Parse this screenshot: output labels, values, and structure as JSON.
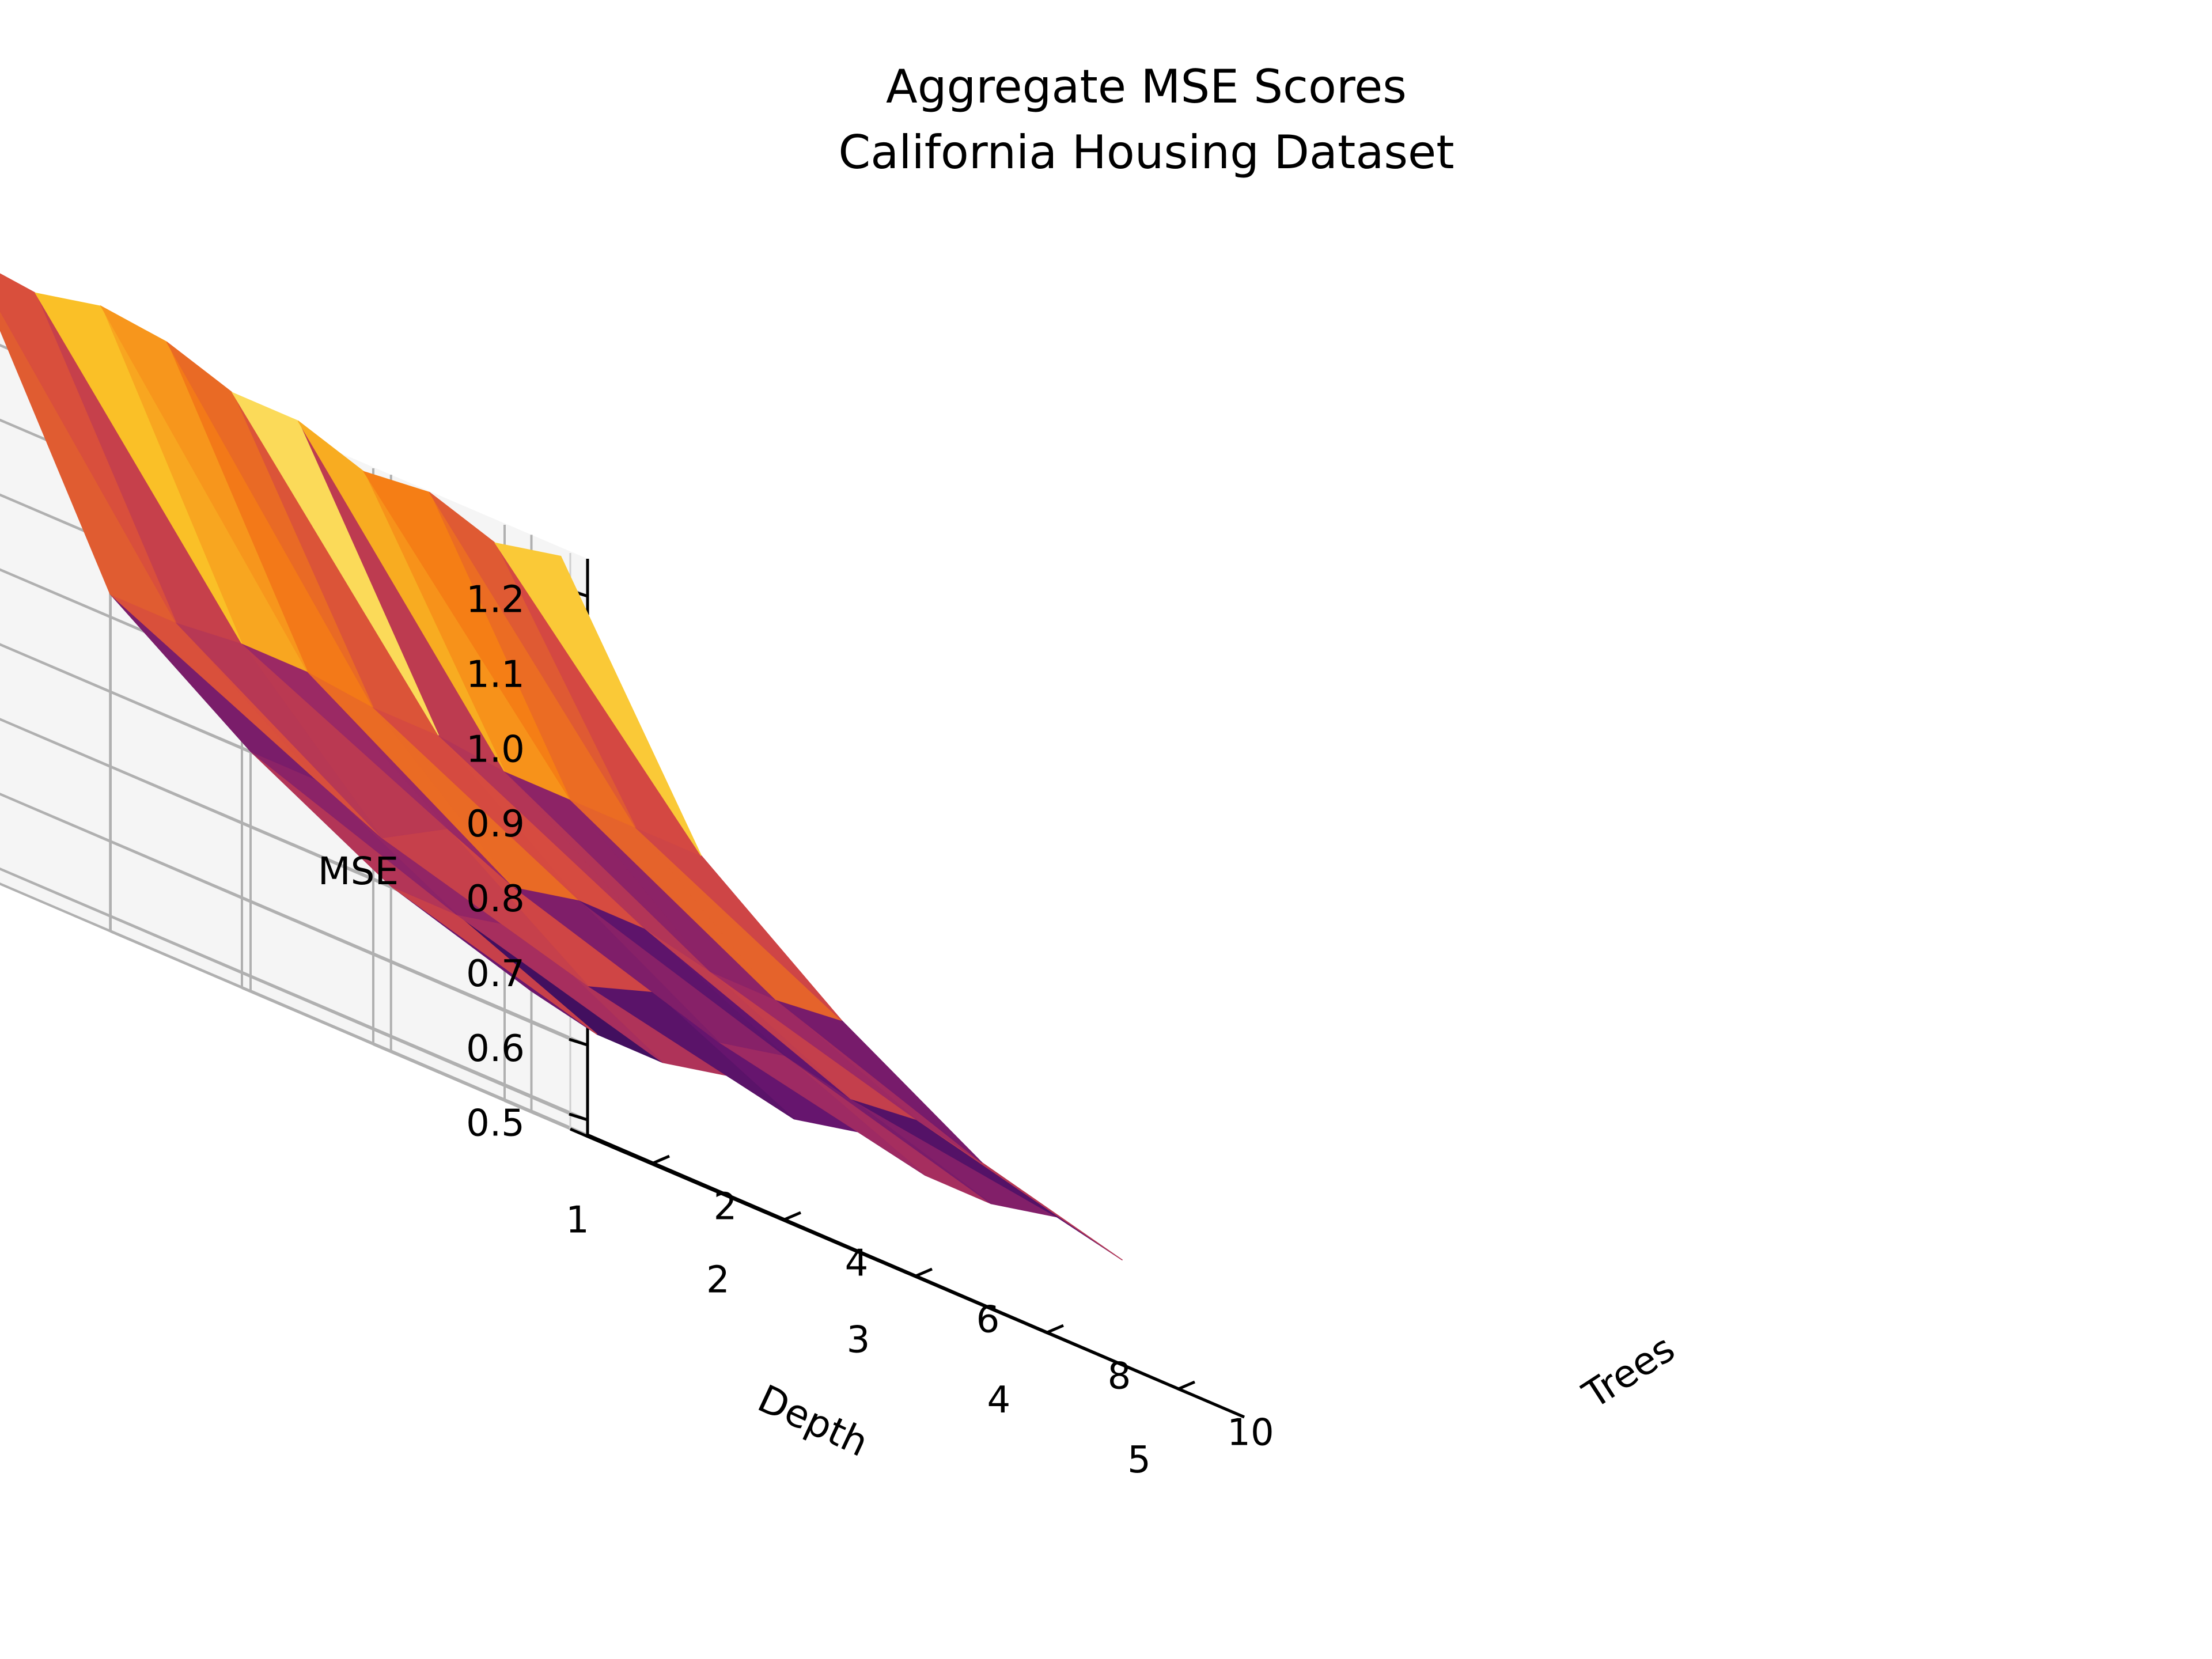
{
  "chart_data": {
    "type": "surface",
    "title": "Aggregate MSE Scores",
    "subtitle": "California Housing Dataset",
    "xlabel": "Trees",
    "ylabel": "Depth",
    "zlabel": "MSE",
    "x_ticks": [
      "2",
      "4",
      "6",
      "8",
      "10"
    ],
    "y_ticks": [
      "1",
      "2",
      "3",
      "4",
      "5"
    ],
    "z_ticks": [
      "0.5",
      "0.6",
      "0.7",
      "0.8",
      "0.9",
      "1.0",
      "1.1",
      "1.2"
    ],
    "xlim": [
      1,
      11
    ],
    "ylim": [
      0.6,
      5.4
    ],
    "zlim": [
      0.48,
      1.25
    ],
    "grid": true,
    "colormap": "inferno",
    "trees": [
      1,
      2,
      3,
      4,
      5,
      6,
      7,
      8,
      9,
      10
    ],
    "depth": [
      1,
      2,
      3,
      4,
      5
    ],
    "mse": [
      [
        1.3,
        1.29,
        1.31,
        1.3,
        1.27,
        1.27,
        1.24,
        1.25,
        1.22,
        1.24
      ],
      [
        0.93,
        0.93,
        0.94,
        0.94,
        0.93,
        0.93,
        0.92,
        0.92,
        0.92,
        0.92
      ],
      [
        0.8,
        0.8,
        0.76,
        0.81,
        0.77,
        0.79,
        0.79,
        0.77,
        0.77,
        0.78
      ],
      [
        0.7,
        0.7,
        0.72,
        0.68,
        0.71,
        0.68,
        0.7,
        0.68,
        0.69,
        0.67
      ],
      [
        0.64,
        0.62,
        0.62,
        0.64,
        0.62,
        0.64,
        0.62,
        0.62,
        0.64,
        0.62
      ]
    ]
  }
}
